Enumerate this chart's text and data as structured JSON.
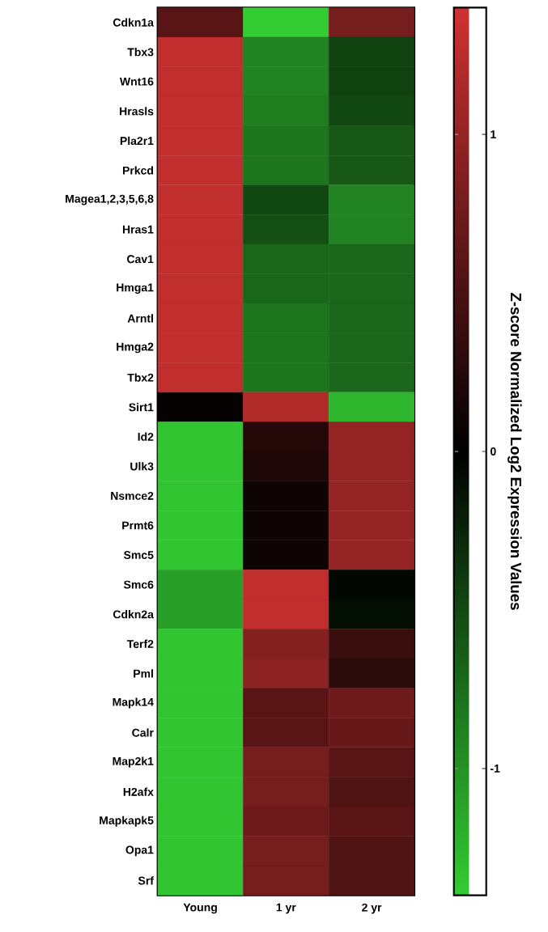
{
  "chart_data": {
    "type": "heatmap",
    "categories": [
      "Young",
      "1 yr",
      "2 yr"
    ],
    "y_categories": [
      "Cdkn1a",
      "Tbx3",
      "Wnt16",
      "Hrasls",
      "Pla2r1",
      "Prkcd",
      "Magea1,2,3,5,6,8",
      "Hras1",
      "Cav1",
      "Hmga1",
      "Arntl",
      "Hmga2",
      "Tbx2",
      "Sirt1",
      "Id2",
      "Ulk3",
      "Nsmce2",
      "Prmt6",
      "Smc5",
      "Smc6",
      "Cdkn2a",
      "Terf2",
      "Pml",
      "Mapk14",
      "Calr",
      "Map2k1",
      "H2afx",
      "Mapkapk5",
      "Opa1",
      "Srf"
    ],
    "cells": [
      [
        0.6,
        -1.4,
        0.8
      ],
      [
        1.3,
        -0.9,
        -0.45
      ],
      [
        1.3,
        -0.9,
        -0.45
      ],
      [
        1.3,
        -0.85,
        -0.5
      ],
      [
        1.3,
        -0.8,
        -0.6
      ],
      [
        1.3,
        -0.8,
        -0.6
      ],
      [
        1.3,
        -0.5,
        -0.9
      ],
      [
        1.3,
        -0.55,
        -0.9
      ],
      [
        1.3,
        -0.7,
        -0.7
      ],
      [
        1.3,
        -0.7,
        -0.7
      ],
      [
        1.3,
        -0.8,
        -0.7
      ],
      [
        1.3,
        -0.8,
        -0.7
      ],
      [
        1.3,
        -0.8,
        -0.7
      ],
      [
        0.05,
        1.2,
        -1.25
      ],
      [
        -1.35,
        0.25,
        1.0
      ],
      [
        -1.35,
        0.2,
        1.0
      ],
      [
        -1.35,
        0.1,
        1.0
      ],
      [
        -1.35,
        0.1,
        1.0
      ],
      [
        -1.35,
        0.1,
        1.0
      ],
      [
        -1.1,
        1.3,
        -0.05
      ],
      [
        -1.1,
        1.3,
        -0.1
      ],
      [
        -1.35,
        0.9,
        0.4
      ],
      [
        -1.35,
        0.95,
        0.3
      ],
      [
        -1.35,
        0.6,
        0.75
      ],
      [
        -1.35,
        0.6,
        0.7
      ],
      [
        -1.35,
        0.8,
        0.6
      ],
      [
        -1.35,
        0.8,
        0.55
      ],
      [
        -1.35,
        0.75,
        0.6
      ],
      [
        -1.35,
        0.8,
        0.55
      ],
      [
        -1.35,
        0.8,
        0.55
      ]
    ],
    "clim": [
      -1.4,
      1.4
    ],
    "cticks": [
      -1,
      0,
      1
    ],
    "clabel": "Z-score Normalized Log2 Expression Values"
  }
}
